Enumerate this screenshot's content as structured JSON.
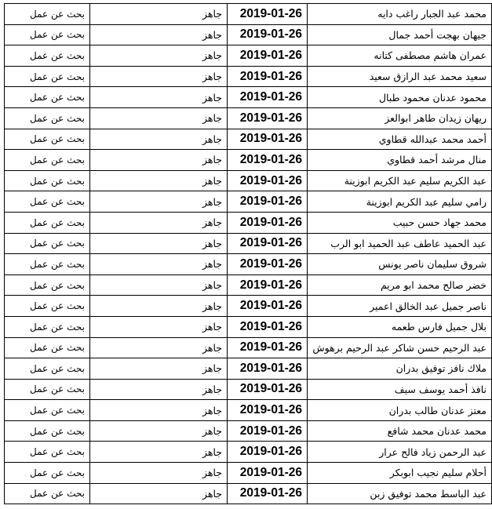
{
  "table": {
    "rows": [
      [
        "محمد عبد الجبار راغب دايه",
        "2019-01-26",
        "جاهز",
        "بحث عن عمل"
      ],
      [
        "جيهان بهجت أحمد جمال",
        "2019-01-26",
        "جاهز",
        "بحث عن عمل"
      ],
      [
        "عمران هاشم مصطفى كتانه",
        "2019-01-26",
        "جاهز",
        "بحث عن عمل"
      ],
      [
        "سعيد محمد عبد الرازق سعيد",
        "2019-01-26",
        "جاهز",
        "بحث عن عمل"
      ],
      [
        "محمود عدنان محمود طبال",
        "2019-01-26",
        "جاهز",
        "بحث عن عمل"
      ],
      [
        "ريهان زيدان طاهر ابوالعز",
        "2019-01-26",
        "جاهز",
        "بحث عن عمل"
      ],
      [
        "أحمد محمد عبدالله قطاوي",
        "2019-01-26",
        "جاهز",
        "بحث عن عمل"
      ],
      [
        "منال مرشد أحمد قطاوي",
        "2019-01-26",
        "جاهز",
        "بحث عن عمل"
      ],
      [
        "عبد الكريم سليم عبد الكريم ابوزينة",
        "2019-01-26",
        "جاهز",
        "بحث عن عمل"
      ],
      [
        "رامي سليم عبد الكريم ابوزينة",
        "2019-01-26",
        "جاهز",
        "بحث عن عمل"
      ],
      [
        "محمد جهاد حسن حبيب",
        "2019-01-26",
        "جاهز",
        "بحث عن عمل"
      ],
      [
        "عبد الحميد عاطف عبد الحميد ابو الرب",
        "2019-01-26",
        "جاهز",
        "بحث عن عمل"
      ],
      [
        "شروق سليمان ناصر يونس",
        "2019-01-26",
        "جاهز",
        "بحث عن عمل"
      ],
      [
        "خضر صالح محمد ابو مريم",
        "2019-01-26",
        "جاهز",
        "بحث عن عمل"
      ],
      [
        "ناصر جميل عبد الخالق اعمير",
        "2019-01-26",
        "جاهز",
        "بحث عن عمل"
      ],
      [
        "بلال جميل فارس طعمه",
        "2019-01-26",
        "جاهز",
        "بحث عن عمل"
      ],
      [
        "عبد الرحيم حسن شاكر عبد الرحيم برهوش",
        "2019-01-26",
        "جاهز",
        "بحث عن عمل"
      ],
      [
        "ملاك نافز توفيق بدران",
        "2019-01-26",
        "جاهز",
        "بحث عن عمل"
      ],
      [
        "نافذ أحمد يوسف سيف",
        "2019-01-26",
        "جاهز",
        "بحث عن عمل"
      ],
      [
        "معتز عدنان طالب بدران",
        "2019-01-26",
        "جاهز",
        "بحث عن عمل"
      ],
      [
        "محمد عدنان محمد شافع",
        "2019-01-26",
        "جاهز",
        "بحث عن عمل"
      ],
      [
        "عبد الرحمن زياد فالح عرار",
        "2019-01-26",
        "جاهز",
        "بحث عن عمل"
      ],
      [
        "أحلام سليم نجيب ابوبكر",
        "2019-01-26",
        "جاهز",
        "بحث عن عمل"
      ],
      [
        "عبد الباسط محمد توفيق زبن",
        "2019-01-26",
        "جاهز",
        "بحث عن عمل"
      ]
    ]
  }
}
